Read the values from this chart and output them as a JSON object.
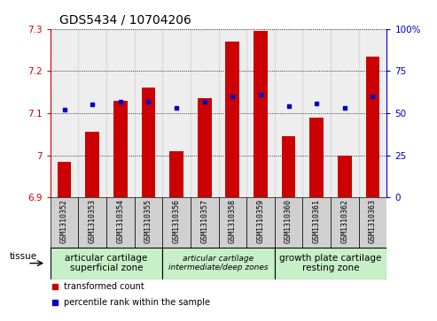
{
  "title": "GDS5434 / 10704206",
  "samples": [
    "GSM1310352",
    "GSM1310353",
    "GSM1310354",
    "GSM1310355",
    "GSM1310356",
    "GSM1310357",
    "GSM1310358",
    "GSM1310359",
    "GSM1310360",
    "GSM1310361",
    "GSM1310362",
    "GSM1310363"
  ],
  "red_values": [
    6.985,
    7.055,
    7.13,
    7.16,
    7.01,
    7.135,
    7.27,
    7.295,
    7.045,
    7.09,
    7.0,
    7.235
  ],
  "blue_values": [
    52,
    55,
    57,
    57,
    53,
    57,
    60,
    61,
    54,
    56,
    53,
    60
  ],
  "ylim_left": [
    6.9,
    7.3
  ],
  "ylim_right": [
    0,
    100
  ],
  "yticks_left": [
    6.9,
    7.0,
    7.1,
    7.2,
    7.3
  ],
  "ytick_labels_left": [
    "6.9",
    "7",
    "7.1",
    "7.2",
    "7.3"
  ],
  "yticks_right": [
    0,
    25,
    50,
    75,
    100
  ],
  "ytick_labels_right": [
    "0",
    "25",
    "50",
    "75",
    "100%"
  ],
  "groups": [
    {
      "label": "articular cartilage\nsuperficial zone",
      "indices": [
        0,
        1,
        2,
        3
      ],
      "color": "#c8f0c8",
      "fontstyle": "normal",
      "fontsize": 7.5
    },
    {
      "label": "articular cartilage\nintermediate/deep zones",
      "indices": [
        4,
        5,
        6,
        7
      ],
      "color": "#c8f0c8",
      "fontstyle": "italic",
      "fontsize": 6.5
    },
    {
      "label": "growth plate cartilage\nresting zone",
      "indices": [
        8,
        9,
        10,
        11
      ],
      "color": "#c8f0c8",
      "fontstyle": "normal",
      "fontsize": 7.5
    }
  ],
  "tissue_label": "tissue",
  "red_color": "#cc0000",
  "blue_color": "#0000cc",
  "bar_base": 6.9,
  "bar_width": 0.5,
  "bg_color": "#ffffff",
  "legend_red": "transformed count",
  "legend_blue": "percentile rank within the sample",
  "title_fontsize": 10,
  "tick_fontsize": 7.5,
  "xtick_fontsize": 6,
  "col_bg_color": "#d0d0d0"
}
